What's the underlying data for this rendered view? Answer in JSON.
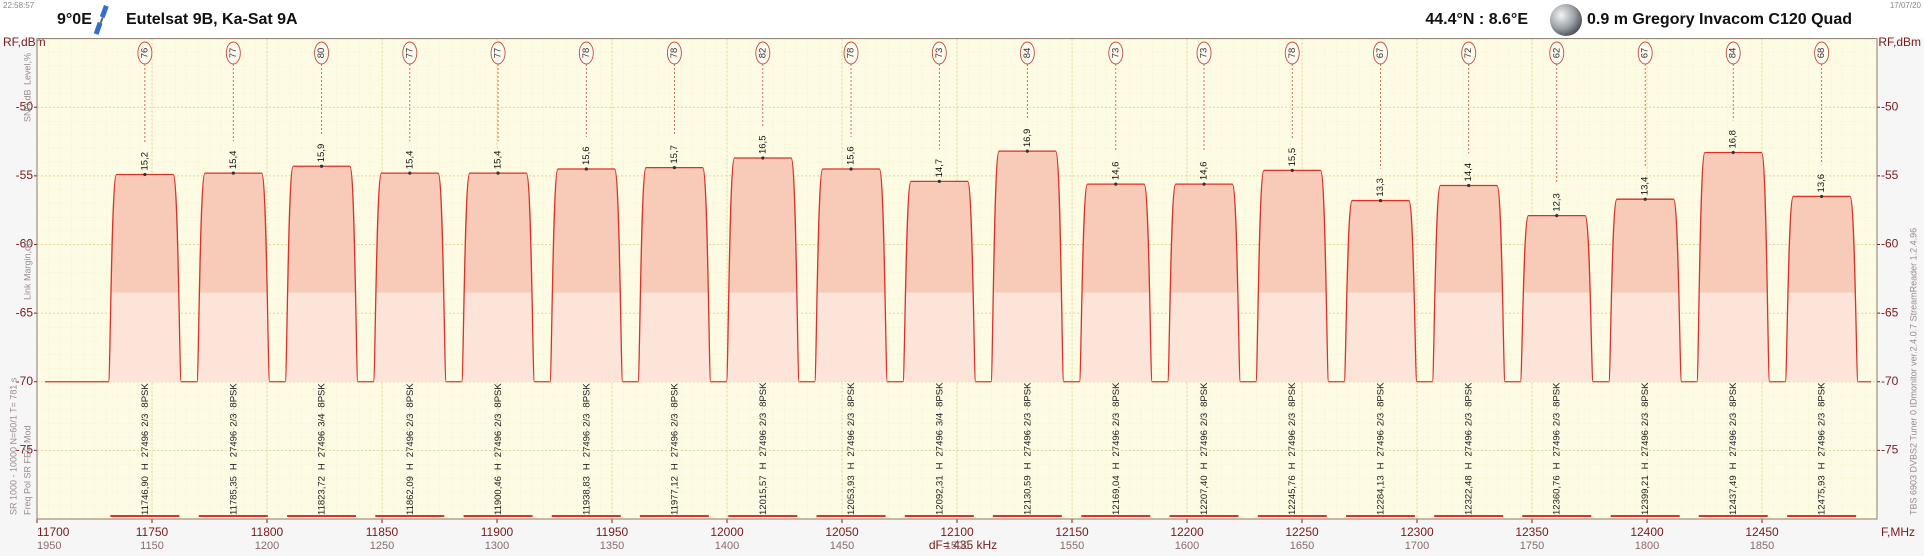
{
  "chart_data": {
    "type": "spectrum",
    "time": "22:58:57",
    "date": "17/07/20",
    "orbital_position": "9°0E",
    "satellite": "Eutelsat 9B, Ka-Sat 9A",
    "location": "44.4°N : 8.6°E",
    "dish": "0.9 m Gregory  Invacom C120 Quad",
    "y_label_left": "RF,dBm",
    "y_label_right": "RF,dBm",
    "x_label": "F,MHz",
    "resolution": "dF= 435 kHz",
    "side_labels": [
      "Level,%",
      "SNR,dB",
      "Link Margin,dB",
      "Freq  Pol  SR  FEC  Mod",
      "SR 1000 - 10000  N=60/1  T= 781 s"
    ],
    "device": "TBS 6903 DVBS2 Tuner 0   IDmonitor ver.2.4.0.7   StreamReader 1.2.4.96",
    "xlim": [
      11700,
      12500
    ],
    "xticks": [
      11700,
      11750,
      11800,
      11850,
      11900,
      11950,
      12000,
      12050,
      12100,
      12150,
      12200,
      12250,
      12300,
      12350,
      12400,
      12450
    ],
    "if_labels": [
      "1950",
      "1150",
      "1200",
      "1250",
      "1300",
      "1350",
      "1400",
      "1450",
      "1500",
      "1550",
      "1600",
      "1650",
      "1700",
      "1750",
      "1800",
      "1850"
    ],
    "ylim": [
      -80,
      -45
    ],
    "yticks": [
      -75,
      -70,
      -65,
      -60,
      -55,
      -50
    ],
    "noise_floor": -70,
    "margin_level": -63.5,
    "trace_color": "#d8322a",
    "grid": true,
    "transponders": [
      {
        "freq": 11746.9,
        "freq_label": "11746,90",
        "pol": "H",
        "sr": 27496,
        "fec": "2/3",
        "mod": "8PSK",
        "level": 76,
        "snr": "15,2",
        "peak": -54.9
      },
      {
        "freq": 11785.35,
        "freq_label": "11785,35",
        "pol": "H",
        "sr": 27496,
        "fec": "2/3",
        "mod": "8PSK",
        "level": 77,
        "snr": "15,4",
        "peak": -54.8
      },
      {
        "freq": 11823.72,
        "freq_label": "11823,72",
        "pol": "H",
        "sr": 27496,
        "fec": "3/4",
        "mod": "8PSK",
        "level": 80,
        "snr": "15,9",
        "peak": -54.3
      },
      {
        "freq": 11862.09,
        "freq_label": "11862,09",
        "pol": "H",
        "sr": 27496,
        "fec": "2/3",
        "mod": "8PSK",
        "level": 77,
        "snr": "15,4",
        "peak": -54.8
      },
      {
        "freq": 11900.46,
        "freq_label": "11900,46",
        "pol": "H",
        "sr": 27496,
        "fec": "2/3",
        "mod": "8PSK",
        "level": 77,
        "snr": "15,4",
        "peak": -54.8
      },
      {
        "freq": 11938.83,
        "freq_label": "11938,83",
        "pol": "H",
        "sr": 27496,
        "fec": "2/3",
        "mod": "8PSK",
        "level": 78,
        "snr": "15,6",
        "peak": -54.5
      },
      {
        "freq": 11977.12,
        "freq_label": "11977,12",
        "pol": "H",
        "sr": 27496,
        "fec": "2/3",
        "mod": "8PSK",
        "level": 78,
        "snr": "15,7",
        "peak": -54.4
      },
      {
        "freq": 12015.57,
        "freq_label": "12015,57",
        "pol": "H",
        "sr": 27496,
        "fec": "2/3",
        "mod": "8PSK",
        "level": 82,
        "snr": "16,5",
        "peak": -53.7
      },
      {
        "freq": 12053.93,
        "freq_label": "12053,93",
        "pol": "H",
        "sr": 27496,
        "fec": "2/3",
        "mod": "8PSK",
        "level": 78,
        "snr": "15,6",
        "peak": -54.5
      },
      {
        "freq": 12092.31,
        "freq_label": "12092,31",
        "pol": "H",
        "sr": 27496,
        "fec": "3/4",
        "mod": "8PSK",
        "level": 73,
        "snr": "14,7",
        "peak": -55.4
      },
      {
        "freq": 12130.59,
        "freq_label": "12130,59",
        "pol": "H",
        "sr": 27496,
        "fec": "2/3",
        "mod": "8PSK",
        "level": 84,
        "snr": "16,9",
        "peak": -53.2
      },
      {
        "freq": 12169.04,
        "freq_label": "12169,04",
        "pol": "H",
        "sr": 27496,
        "fec": "2/3",
        "mod": "8PSK",
        "level": 73,
        "snr": "14,6",
        "peak": -55.6
      },
      {
        "freq": 12207.4,
        "freq_label": "12207,40",
        "pol": "H",
        "sr": 27496,
        "fec": "2/3",
        "mod": "8PSK",
        "level": 73,
        "snr": "14,6",
        "peak": -55.6
      },
      {
        "freq": 12245.76,
        "freq_label": "12245,76",
        "pol": "H",
        "sr": 27496,
        "fec": "2/3",
        "mod": "8PSK",
        "level": 78,
        "snr": "15,5",
        "peak": -54.6
      },
      {
        "freq": 12284.13,
        "freq_label": "12284,13",
        "pol": "H",
        "sr": 27496,
        "fec": "2/3",
        "mod": "8PSK",
        "level": 67,
        "snr": "13,3",
        "peak": -56.8
      },
      {
        "freq": 12322.48,
        "freq_label": "12322,48",
        "pol": "H",
        "sr": 27496,
        "fec": "2/3",
        "mod": "8PSK",
        "level": 72,
        "snr": "14,4",
        "peak": -55.7
      },
      {
        "freq": 12360.76,
        "freq_label": "12360,76",
        "pol": "H",
        "sr": 27496,
        "fec": "2/3",
        "mod": "8PSK",
        "level": 62,
        "snr": "12,3",
        "peak": -57.9
      },
      {
        "freq": 12399.21,
        "freq_label": "12399,21",
        "pol": "H",
        "sr": 27496,
        "fec": "2/3",
        "mod": "8PSK",
        "level": 67,
        "snr": "13,4",
        "peak": -56.7
      },
      {
        "freq": 12437.49,
        "freq_label": "12437,49",
        "pol": "H",
        "sr": 27496,
        "fec": "2/3",
        "mod": "8PSK",
        "level": 84,
        "snr": "16,8",
        "peak": -53.3
      },
      {
        "freq": 12475.93,
        "freq_label": "12475,93",
        "pol": "H",
        "sr": 27496,
        "fec": "2/3",
        "mod": "8PSK",
        "level": 68,
        "snr": "13,6",
        "peak": -56.5
      }
    ]
  }
}
